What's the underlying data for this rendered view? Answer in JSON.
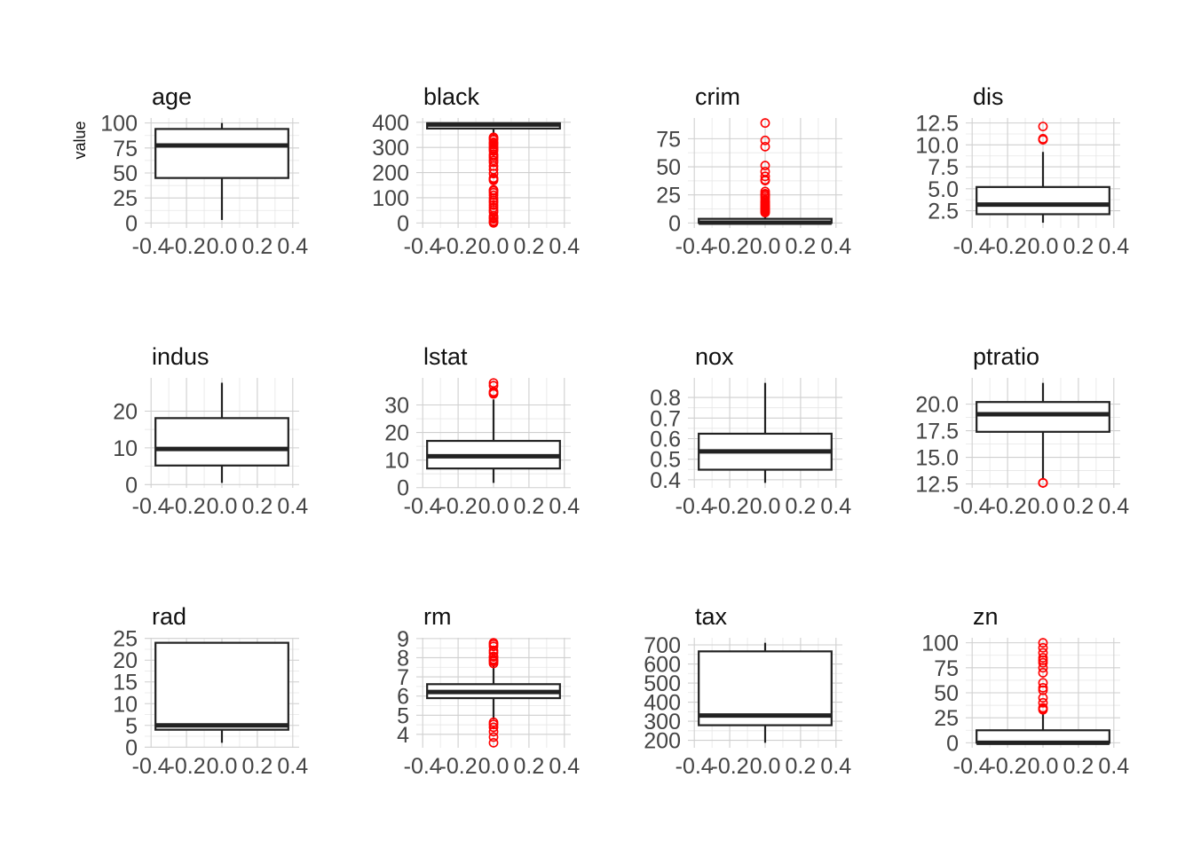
{
  "chart_data": {
    "type": "boxplot",
    "ylabel": "value",
    "x_ticks": [
      "-0.4",
      "-0.2",
      "0.0",
      "0.2",
      "0.4"
    ],
    "xlim": [
      -0.4,
      0.4
    ],
    "box_width": 0.75,
    "outlier_color": "#FF0000",
    "box_color": "#222222",
    "panels": [
      {
        "name": "age",
        "ylim": [
          0,
          100
        ],
        "ytick_values": [
          0,
          25,
          50,
          75,
          100
        ],
        "ytick_labels": [
          "0",
          "25",
          "50",
          "75",
          "100"
        ],
        "whisker_low": 3,
        "q1": 45,
        "median": 77.5,
        "q3": 94,
        "whisker_high": 100,
        "outliers": []
      },
      {
        "name": "black",
        "ylim": [
          0,
          397
        ],
        "ytick_values": [
          0,
          100,
          200,
          300,
          400
        ],
        "ytick_labels": [
          "0",
          "100",
          "200",
          "300",
          "400"
        ],
        "whisker_low": 345,
        "q1": 375,
        "median": 391,
        "q3": 396,
        "whisker_high": 397,
        "outliers": [
          0.3,
          3.5,
          7.7,
          16.5,
          21.6,
          27.5,
          43.1,
          50.9,
          60.7,
          70.8,
          81.3,
          88.6,
          97.9,
          109.9,
          120,
          127.4,
          131.4,
          169.3,
          174,
          178.4,
          196,
          212,
          226,
          240.5,
          248.3,
          258,
          265.5,
          272,
          285.8,
          292.3,
          296.1,
          302.8,
          310.2,
          316,
          320.5,
          330,
          336,
          340
        ]
      },
      {
        "name": "crim",
        "ylim": [
          0,
          89
        ],
        "ytick_values": [
          0,
          25,
          50,
          75
        ],
        "ytick_labels": [
          "0",
          "25",
          "50",
          "75"
        ],
        "whisker_low": 0.006,
        "q1": 0.08,
        "median": 0.26,
        "q3": 3.7,
        "whisker_high": 8.98,
        "outliers": [
          9.2,
          9.9,
          10.8,
          11.1,
          12,
          13,
          13.7,
          14.3,
          15,
          15.9,
          16.8,
          18.1,
          18.8,
          20.1,
          22,
          23.6,
          25,
          26,
          28,
          37.7,
          38.4,
          41.5,
          45.7,
          51.1,
          67.9,
          73.5,
          88.98
        ]
      },
      {
        "name": "dis",
        "ylim": [
          1.1,
          12.5
        ],
        "ytick_values": [
          2.5,
          5.0,
          7.5,
          10.0,
          12.5
        ],
        "ytick_labels": [
          "2.5",
          "5.0",
          "7.5",
          "10.0",
          "12.5"
        ],
        "whisker_low": 1.13,
        "q1": 2.1,
        "median": 3.2,
        "q3": 5.2,
        "whisker_high": 9.2,
        "outliers": [
          10.6,
          10.7,
          10.6,
          12.1
        ]
      },
      {
        "name": "indus",
        "ylim": [
          0.46,
          27.7
        ],
        "ytick_values": [
          0,
          10,
          20
        ],
        "ytick_labels": [
          "0",
          "10",
          "20"
        ],
        "whisker_low": 0.46,
        "q1": 5.19,
        "median": 9.69,
        "q3": 18.1,
        "whisker_high": 27.74,
        "outliers": []
      },
      {
        "name": "lstat",
        "ylim": [
          1.73,
          38
        ],
        "ytick_values": [
          0,
          10,
          20,
          30
        ],
        "ytick_labels": [
          "0",
          "10",
          "20",
          "30"
        ],
        "whisker_low": 1.73,
        "q1": 6.95,
        "median": 11.36,
        "q3": 16.96,
        "whisker_high": 31.99,
        "outliers": [
          34.4,
          34.8,
          36.98,
          37.97,
          34.02
        ]
      },
      {
        "name": "nox",
        "ylim": [
          0.385,
          0.871
        ],
        "ytick_values": [
          0.4,
          0.5,
          0.6,
          0.7,
          0.8
        ],
        "ytick_labels": [
          "0.4",
          "0.5",
          "0.6",
          "0.7",
          "0.8"
        ],
        "whisker_low": 0.385,
        "q1": 0.449,
        "median": 0.538,
        "q3": 0.624,
        "whisker_high": 0.871,
        "outliers": []
      },
      {
        "name": "ptratio",
        "ylim": [
          12.6,
          22
        ],
        "ytick_values": [
          12.5,
          15.0,
          17.5,
          20.0
        ],
        "ytick_labels": [
          "12.5",
          "15.0",
          "17.5",
          "20.0"
        ],
        "whisker_low": 13.0,
        "q1": 17.4,
        "median": 19.05,
        "q3": 20.2,
        "whisker_high": 22.0,
        "outliers": [
          12.6,
          12.6,
          12.6
        ]
      },
      {
        "name": "rad",
        "ylim": [
          1,
          24
        ],
        "ytick_values": [
          0,
          5,
          10,
          15,
          20,
          25
        ],
        "ytick_labels": [
          "0",
          "5",
          "10",
          "15",
          "20",
          "25"
        ],
        "whisker_low": 1,
        "q1": 4,
        "median": 5,
        "q3": 24,
        "whisker_high": 24,
        "outliers": []
      },
      {
        "name": "rm",
        "ylim": [
          3.56,
          8.78
        ],
        "ytick_values": [
          4,
          5,
          6,
          7,
          8,
          9
        ],
        "ytick_labels": [
          "4",
          "5",
          "6",
          "7",
          "8",
          "9"
        ],
        "whisker_low": 4.78,
        "q1": 5.89,
        "median": 6.21,
        "q3": 6.62,
        "whisker_high": 7.69,
        "outliers": [
          3.56,
          3.86,
          4.14,
          4.37,
          4.52,
          4.63,
          7.7,
          7.8,
          7.85,
          7.92,
          8.04,
          8.07,
          8.25,
          8.38,
          8.59,
          8.7,
          8.78
        ]
      },
      {
        "name": "tax",
        "ylim": [
          187,
          711
        ],
        "ytick_values": [
          200,
          300,
          400,
          500,
          600,
          700
        ],
        "ytick_labels": [
          "200",
          "300",
          "400",
          "500",
          "600",
          "700"
        ],
        "whisker_low": 187,
        "q1": 279,
        "median": 330,
        "q3": 666,
        "whisker_high": 711,
        "outliers": []
      },
      {
        "name": "zn",
        "ylim": [
          0,
          100
        ],
        "ytick_values": [
          0,
          25,
          50,
          75,
          100
        ],
        "ytick_labels": [
          "0",
          "25",
          "50",
          "75",
          "100"
        ],
        "whisker_low": 0,
        "q1": 0,
        "median": 0,
        "q3": 12.5,
        "whisker_high": 30,
        "outliers": [
          33,
          34,
          35,
          40,
          45,
          52.5,
          55,
          60,
          70,
          75,
          80,
          82.5,
          85,
          90,
          95,
          100
        ]
      }
    ]
  }
}
